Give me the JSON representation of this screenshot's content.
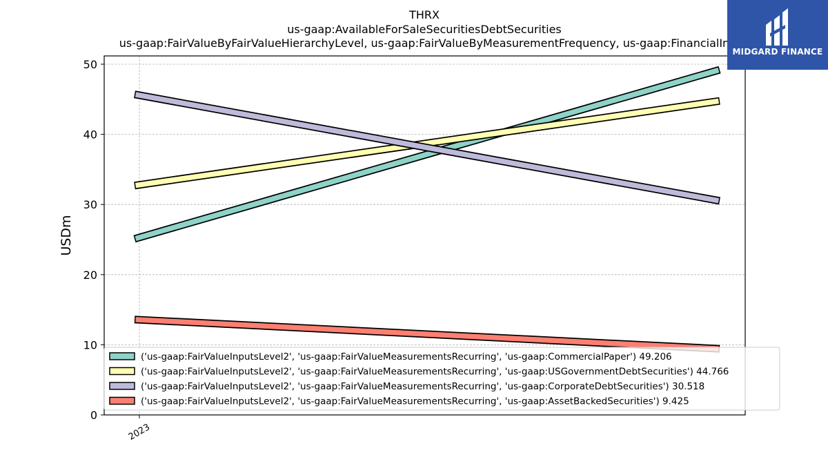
{
  "chart_data": {
    "type": "line",
    "title_lines": [
      "THRX",
      "us-gaap:AvailableForSaleSecuritiesDebtSecurities",
      "us-gaap:FairValueByFairValueHierarchyLevel, us-gaap:FairValueByMeasurementFrequency, us-gaap:FinancialIn"
    ],
    "ylabel": "USDm",
    "ylim": [
      0,
      50
    ],
    "yticks": [
      "0",
      "10",
      "20",
      "30",
      "40",
      "50"
    ],
    "xticks": [
      "2023"
    ],
    "grid": true,
    "legend_position": "lower-left",
    "series": [
      {
        "name": "('us-gaap:FairValueInputsLevel2', 'us-gaap:FairValueMeasurementsRecurring', 'us-gaap:CommercialPaper') 49.206",
        "color": "#8dd3c7",
        "values": [
          25.1,
          49.206
        ]
      },
      {
        "name": "('us-gaap:FairValueInputsLevel2', 'us-gaap:FairValueMeasurementsRecurring', 'us-gaap:USGovernmentDebtSecurities') 44.766",
        "color": "#ffffb3",
        "values": [
          32.7,
          44.766
        ]
      },
      {
        "name": "('us-gaap:FairValueInputsLevel2', 'us-gaap:FairValueMeasurementsRecurring', 'us-gaap:CorporateDebtSecurities') 30.518",
        "color": "#bebada",
        "values": [
          45.7,
          30.518
        ]
      },
      {
        "name": "('us-gaap:FairValueInputsLevel2', 'us-gaap:FairValueMeasurementsRecurring', 'us-gaap:AssetBackedSecurities') 9.425",
        "color": "#fb8072",
        "values": [
          13.6,
          9.425
        ]
      }
    ]
  },
  "logo": {
    "text": "MIDGARD FINANCE",
    "background": "#2f55a8"
  }
}
